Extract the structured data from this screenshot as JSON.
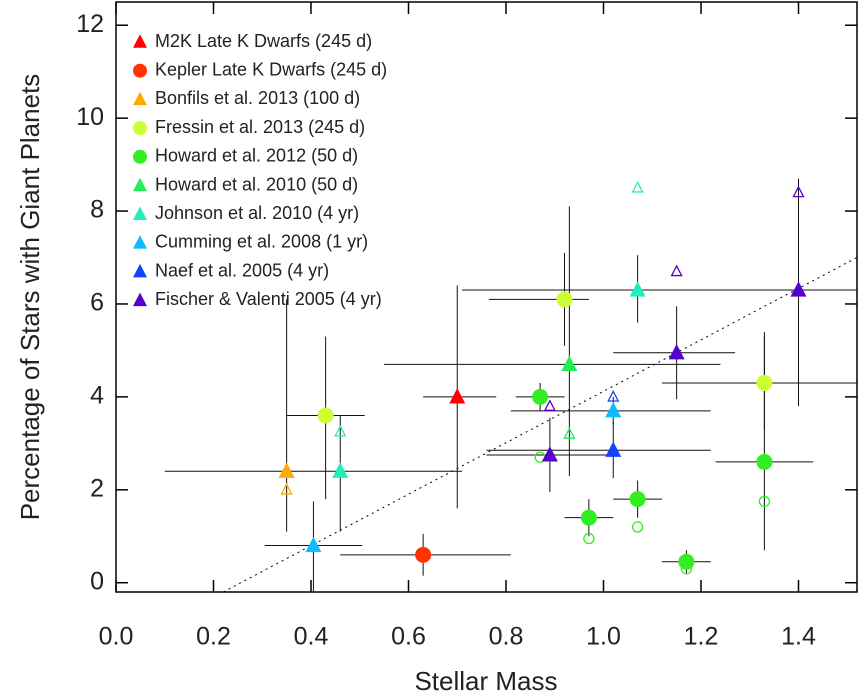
{
  "chart_data": {
    "type": "scatter",
    "x_label": "Stellar Mass",
    "y_label": "Percentage of Stars with Giant Planets",
    "xlim": [
      0,
      1.52
    ],
    "ylim": [
      -0.2,
      12.5
    ],
    "xticks": [
      {
        "value": 0,
        "label": "0.0"
      },
      {
        "value": 0.2,
        "label": "0.2"
      },
      {
        "value": 0.4,
        "label": "0.4"
      },
      {
        "value": 0.6,
        "label": "0.6"
      },
      {
        "value": 0.8,
        "label": "0.8"
      },
      {
        "value": 1.0,
        "label": "1.0"
      },
      {
        "value": 1.2,
        "label": "1.2"
      },
      {
        "value": 1.4,
        "label": "1.4"
      }
    ],
    "yticks": [
      0,
      2,
      4,
      6,
      8,
      10,
      12
    ],
    "legend": "upper left",
    "reference_line": {
      "x": [
        0.22,
        1.52
      ],
      "y": [
        -0.2,
        7.0
      ]
    },
    "series": [
      {
        "name": "M2K Late K Dwarfs (245 d)",
        "color": "#ff0000",
        "marker": "triangle",
        "x": [
          0.7
        ],
        "values": [
          4.0
        ],
        "xerr_minus": [
          0.07
        ],
        "xerr_plus": [
          0.08
        ],
        "yerr_minus": [
          2.4
        ],
        "yerr_plus": [
          2.4
        ],
        "open_x": [],
        "open_values": []
      },
      {
        "name": "Kepler Late K Dwarfs (245 d)",
        "color": "#ff3300",
        "marker": "circle",
        "x": [
          0.63
        ],
        "values": [
          0.6
        ],
        "xerr_minus": [
          0.17
        ],
        "xerr_plus": [
          0.18
        ],
        "yerr_minus": [
          0.45
        ],
        "yerr_plus": [
          0.45
        ],
        "open_x": [],
        "open_values": []
      },
      {
        "name": "Bonfils et al. 2013 (100 d)",
        "color": "#ffaa00",
        "marker": "triangle",
        "x": [
          0.35
        ],
        "values": [
          2.4
        ],
        "xerr_minus": [
          0.25
        ],
        "xerr_plus": [
          0.36
        ],
        "yerr_minus": [
          1.3
        ],
        "yerr_plus": [
          3.7
        ],
        "open_x": [
          0.35
        ],
        "open_values": [
          2.0
        ]
      },
      {
        "name": "Fressin et al. 2013 (245 d)",
        "color": "#ccff33",
        "marker": "circle",
        "x": [
          0.43,
          0.92,
          1.33
        ],
        "values": [
          3.6,
          6.1,
          4.3
        ],
        "xerr_minus": [
          0.08,
          0.155,
          0.21
        ],
        "xerr_plus": [
          0.08,
          0.05,
          0.19
        ],
        "yerr_minus": [
          1.8,
          1.0,
          1.0
        ],
        "yerr_plus": [
          1.7,
          1.0,
          1.0
        ],
        "open_x": [],
        "open_values": []
      },
      {
        "name": "Howard et al. 2012 (50 d)",
        "color": "#33ee22",
        "marker": "circle",
        "x": [
          0.87,
          0.97,
          1.07,
          1.17,
          1.33
        ],
        "values": [
          4.0,
          1.4,
          1.8,
          0.45,
          2.6
        ],
        "xerr_minus": [
          0.05,
          0.05,
          0.05,
          0.05,
          0.1
        ],
        "xerr_plus": [
          0.05,
          0.05,
          0.05,
          0.05,
          0.1
        ],
        "yerr_minus": [
          0.3,
          0.4,
          0.4,
          0.25,
          1.9
        ],
        "yerr_plus": [
          0.3,
          0.4,
          0.4,
          0.25,
          2.8
        ],
        "open_x": [
          0.87,
          0.97,
          1.07,
          1.17,
          1.33
        ],
        "open_values": [
          2.7,
          0.95,
          1.2,
          0.3,
          1.75
        ]
      },
      {
        "name": "Howard et al. 2010 (50 d)",
        "color": "#22ee55",
        "marker": "triangle",
        "x": [
          0.93
        ],
        "values": [
          4.7
        ],
        "xerr_minus": [
          0.38
        ],
        "xerr_plus": [
          0.31
        ],
        "yerr_minus": [
          2.4
        ],
        "yerr_plus": [
          3.4
        ],
        "open_x": [
          0.93
        ],
        "open_values": [
          3.2
        ]
      },
      {
        "name": "Johnson et al. 2010 (4 yr)",
        "color": "#22eebb",
        "marker": "triangle",
        "x": [
          0.46,
          1.07
        ],
        "values": [
          2.4,
          6.3
        ],
        "xerr_minus": [
          0,
          0.36
        ],
        "xerr_plus": [
          0,
          0.45
        ],
        "yerr_minus": [
          1.3,
          0.7
        ],
        "yerr_plus": [
          1.2,
          0.75
        ],
        "open_x": [
          0.46,
          1.07
        ],
        "open_values": [
          3.25,
          8.5
        ]
      },
      {
        "name": "Cumming et al. 2008 (1 yr)",
        "color": "#11bbff",
        "marker": "triangle",
        "x": [
          0.405,
          1.02
        ],
        "values": [
          0.8,
          3.7
        ],
        "xerr_minus": [
          0.1,
          0.21
        ],
        "xerr_plus": [
          0.1,
          0.2
        ],
        "yerr_minus": [
          1.0,
          0.3
        ],
        "yerr_plus": [
          0.95,
          0.3
        ],
        "open_x": [],
        "open_values": []
      },
      {
        "name": "Naef et al. 2005 (4 yr)",
        "color": "#1144ff",
        "marker": "triangle",
        "x": [
          1.02
        ],
        "values": [
          2.85
        ],
        "xerr_minus": [
          0.26
        ],
        "xerr_plus": [
          0.2
        ],
        "yerr_minus": [
          0.6
        ],
        "yerr_plus": [
          0.6
        ],
        "open_x": [
          1.02
        ],
        "open_values": [
          4.0
        ]
      },
      {
        "name": "Fischer & Valenti 2005 (4 yr)",
        "color": "#5500cc",
        "marker": "triangle",
        "x": [
          0.89,
          1.15,
          1.4
        ],
        "values": [
          2.75,
          4.95,
          6.3
        ],
        "xerr_minus": [
          0.13,
          0.13,
          0.11
        ],
        "xerr_plus": [
          0.13,
          0.12,
          0.12
        ],
        "yerr_minus": [
          0.8,
          1.0,
          2.5
        ],
        "yerr_plus": [
          0.8,
          1.0,
          2.4
        ],
        "open_x": [
          0.89,
          1.15,
          1.4
        ],
        "open_values": [
          3.8,
          6.7,
          8.4
        ]
      }
    ]
  }
}
